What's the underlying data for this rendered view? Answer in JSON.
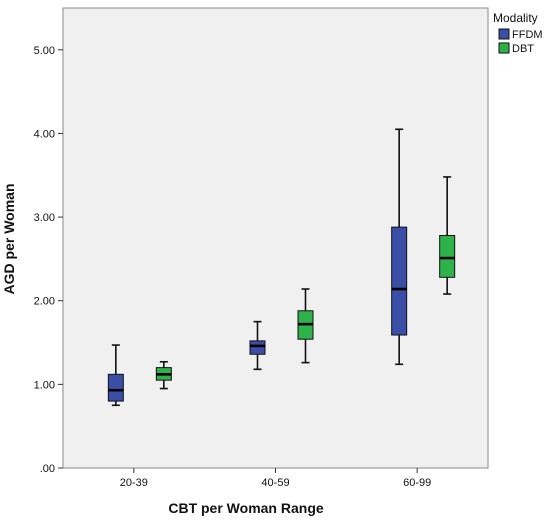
{
  "chart_data": {
    "type": "boxplot",
    "title": "",
    "xlabel": "CBT per Woman Range",
    "ylabel": "AGD per Woman",
    "ylim": [
      0,
      5.5
    ],
    "yticks": [
      ".00",
      "1.00",
      "2.00",
      "3.00",
      "4.00",
      "5.00"
    ],
    "ytick_values": [
      0,
      1,
      2,
      3,
      4,
      5
    ],
    "categories": [
      "20-39",
      "40-59",
      "60-99"
    ],
    "grid": false,
    "legend": {
      "title": "Modality",
      "position": "right"
    },
    "series": [
      {
        "name": "FFDM",
        "color": "#3a4ea8",
        "boxes": [
          {
            "min": 0.75,
            "q1": 0.8,
            "median": 0.93,
            "q3": 1.12,
            "max": 1.47
          },
          {
            "min": 1.18,
            "q1": 1.36,
            "median": 1.46,
            "q3": 1.52,
            "max": 1.75
          },
          {
            "min": 1.24,
            "q1": 1.59,
            "median": 2.14,
            "q3": 2.88,
            "max": 4.05
          }
        ]
      },
      {
        "name": "DBT",
        "color": "#2db34a",
        "boxes": [
          {
            "min": 0.95,
            "q1": 1.05,
            "median": 1.12,
            "q3": 1.2,
            "max": 1.27
          },
          {
            "min": 1.26,
            "q1": 1.54,
            "median": 1.72,
            "q3": 1.88,
            "max": 2.14
          },
          {
            "min": 2.08,
            "q1": 2.28,
            "median": 2.51,
            "q3": 2.78,
            "max": 3.48
          }
        ]
      }
    ]
  }
}
